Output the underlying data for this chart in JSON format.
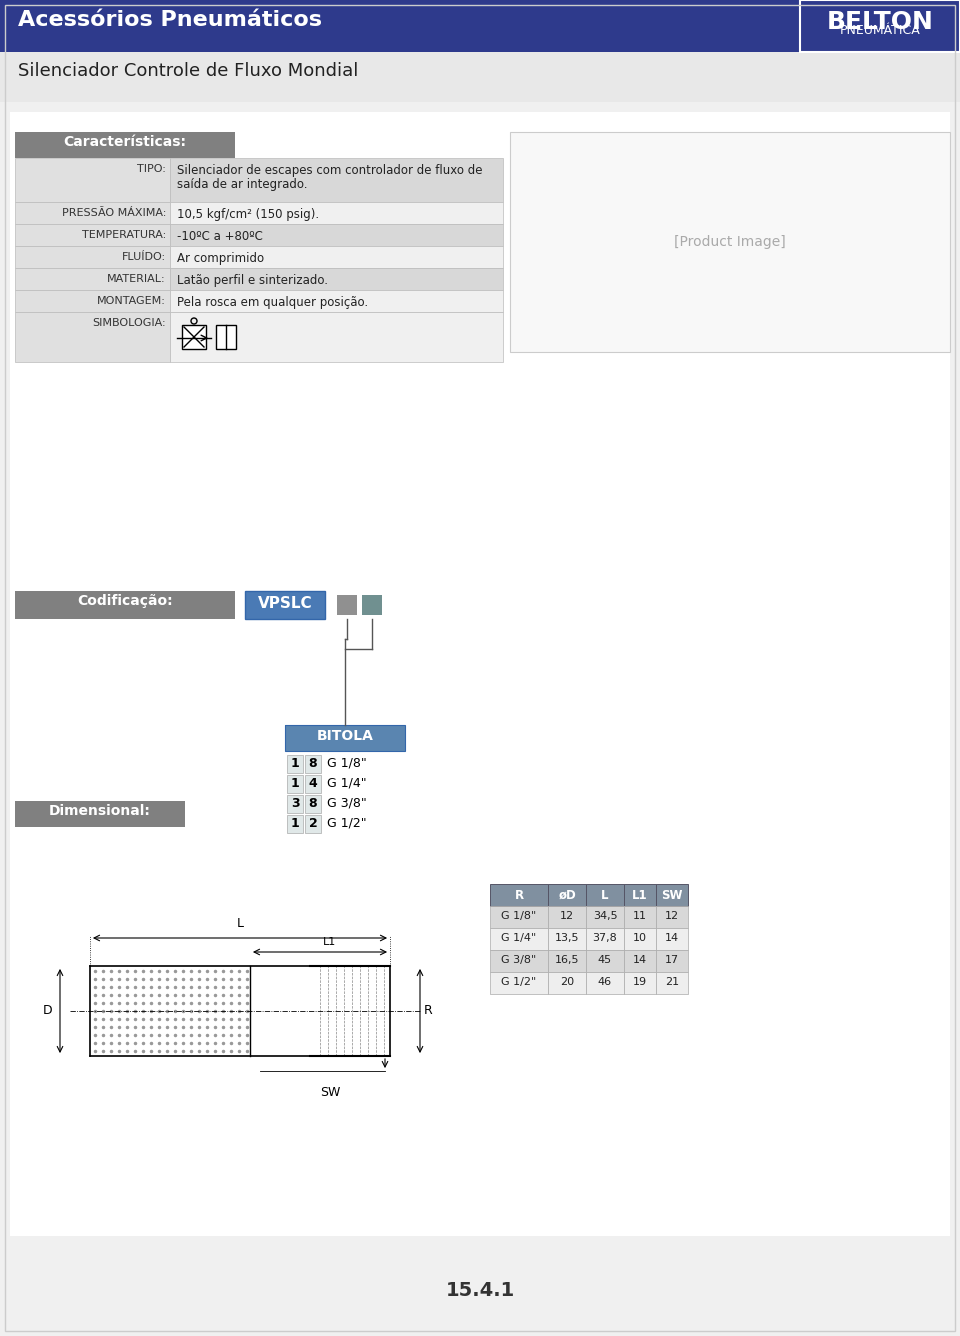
{
  "title_main": "Acessórios Pneumáticos",
  "brand_line1": "BELTON",
  "brand_line2": "PNEUMÁTICA",
  "subtitle": "Silenciador Controle de Fluxo Mondial",
  "section1_header": "Características:",
  "rows": [
    {
      "label": "TIPO:",
      "value": "Silenciador de escapes com controlador de fluxo de\nsaída de ar integrado.",
      "shaded": true
    },
    {
      "label": "PRESSÃO MÁXIMA:",
      "value": "10,5 kgf/cm² (150 psig).",
      "shaded": false
    },
    {
      "label": "TEMPERATURA:",
      "value": "-10ºC a +80ºC",
      "shaded": true
    },
    {
      "label": "FLUÍDO:",
      "value": "Ar comprimido",
      "shaded": false
    },
    {
      "label": "MATERIAL:",
      "value": "Latão perfil e sinterizado.",
      "shaded": true
    },
    {
      "label": "MONTAGEM:",
      "value": "Pela rosca em qualquer posição.",
      "shaded": false
    },
    {
      "label": "SIMBOLOGIA:",
      "value": "",
      "shaded": false
    }
  ],
  "coding_label": "Codificação:",
  "coding_code": "VPSLC",
  "bitola_header": "BITOLA",
  "bitola_rows": [
    {
      "n1": "1",
      "n2": "8",
      "desc": "G 1/8\""
    },
    {
      "n1": "1",
      "n2": "4",
      "desc": "G 1/4\""
    },
    {
      "n1": "3",
      "n2": "8",
      "desc": "G 3/8\""
    },
    {
      "n1": "1",
      "n2": "2",
      "desc": "G 1/2\""
    }
  ],
  "dimensional_label": "Dimensional:",
  "dim_table_headers": [
    "R",
    "øD",
    "L",
    "L1",
    "SW"
  ],
  "dim_table_rows": [
    [
      "G 1/8\"",
      "12",
      "34,5",
      "11",
      "12"
    ],
    [
      "G 1/4\"",
      "13,5",
      "37,8",
      "10",
      "14"
    ],
    [
      "G 3/8\"",
      "16,5",
      "45",
      "14",
      "17"
    ],
    [
      "G 1/2\"",
      "20",
      "46",
      "19",
      "21"
    ]
  ],
  "page_number": "15.4.1",
  "header_bg": "#2e3a8c",
  "header_text": "#ffffff",
  "section_header_bg": "#808080",
  "section_header_text": "#ffffff",
  "row_shaded_bg": "#d8d8d8",
  "row_normal_bg": "#f0f0f0",
  "label_col_bg": "#e8e8e8",
  "coding_bg": "#808080",
  "coding_text_bg": "#4a7ab5",
  "bitola_header_bg": "#5a85b0",
  "dim_header_bg": "#8090a0",
  "dim_header_text": "#ffffff",
  "page_bg": "#f0f0f0",
  "content_bg": "#ffffff"
}
